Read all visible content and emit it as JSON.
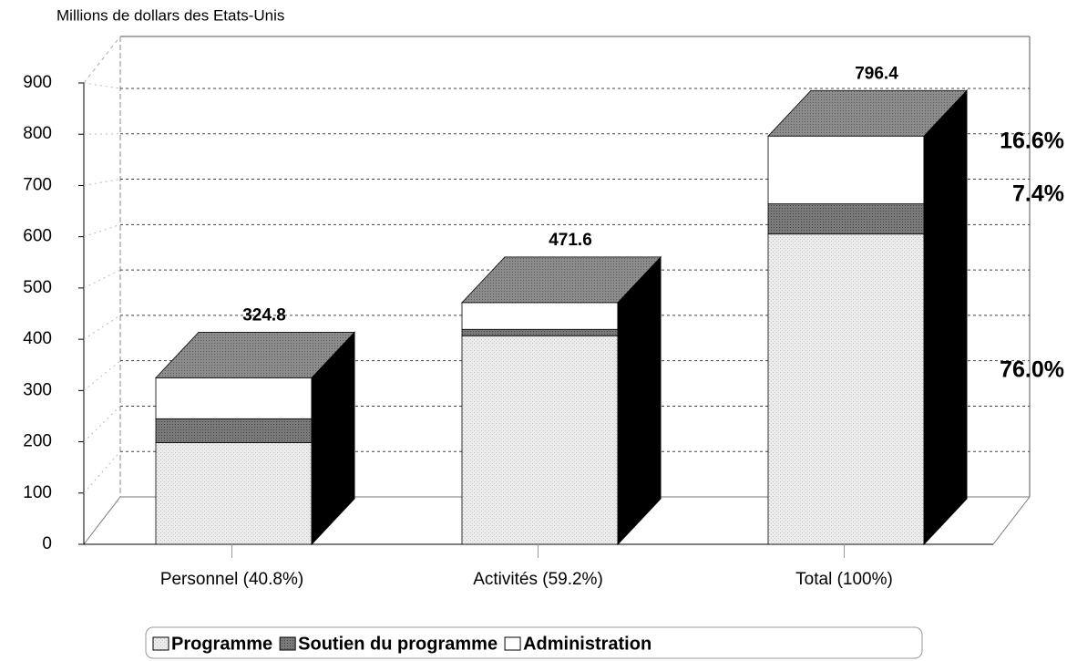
{
  "chart_data": {
    "type": "bar",
    "stacked": true,
    "title": "Millions de dollars des Etats-Unis",
    "categories": [
      "Personnel (40.8%)",
      "Activités (59.2%)",
      "Total (100%)"
    ],
    "series": [
      {
        "name": "Programme",
        "color": "#e6e6e6",
        "values": [
          198.5,
          406.8,
          605.3
        ]
      },
      {
        "name": "Soutien du programme",
        "color": "#7a7a7a",
        "values": [
          46.4,
          12.5,
          58.9
        ]
      },
      {
        "name": "Administration",
        "color": "#ffffff",
        "values": [
          79.9,
          52.3,
          132.2
        ]
      }
    ],
    "totals": [
      324.8,
      471.6,
      796.4
    ],
    "annotations": [
      "16.6%",
      "7.4%",
      "76.0%"
    ],
    "ylim": [
      0,
      900
    ],
    "yticks": [
      0,
      100,
      200,
      300,
      400,
      500,
      600,
      700,
      800,
      900
    ],
    "grid": true,
    "legend": "bottom"
  }
}
